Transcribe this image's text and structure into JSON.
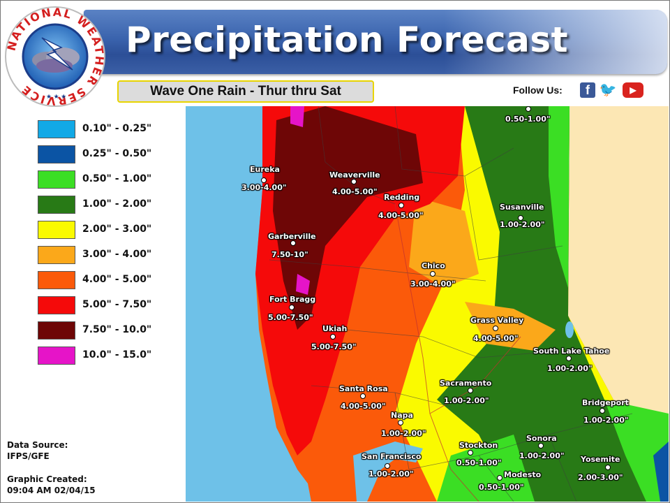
{
  "header": {
    "title": "Precipitation Forecast",
    "subtitle": "Wave One Rain - Thur thru Sat"
  },
  "logo": {
    "icon": "nws-logo-icon",
    "ring_text": "NATIONAL WEATHER SERVICE"
  },
  "social": {
    "follow_label": "Follow Us:",
    "facebook_icon": "facebook-icon",
    "twitter_icon": "twitter-icon",
    "youtube_icon": "youtube-icon",
    "facebook_glyph": "f",
    "twitter_glyph": "🐦",
    "youtube_glyph": "▶"
  },
  "legend": [
    {
      "label": "0.10\" - 0.25\"",
      "color": "#12a9e6"
    },
    {
      "label": "0.25\" - 0.50\"",
      "color": "#0b54a4"
    },
    {
      "label": "0.50\" - 1.00\"",
      "color": "#3bde24"
    },
    {
      "label": "1.00\" - 2.00\"",
      "color": "#287a16"
    },
    {
      "label": "2.00\" - 3.00\"",
      "color": "#fafa00"
    },
    {
      "label": "3.00\" - 4.00\"",
      "color": "#fba81a"
    },
    {
      "label": "4.00\" - 5.00\"",
      "color": "#fb5a0a"
    },
    {
      "label": "5.00\" - 7.50\"",
      "color": "#f50a0a"
    },
    {
      "label": "7.50\" - 10.0\"",
      "color": "#6e0606"
    },
    {
      "label": "10.0\" - 15.0\"",
      "color": "#e614c8"
    }
  ],
  "footer": {
    "source_label": "Data Source:",
    "source_value": "IFPS/GFE",
    "created_label": "Graphic Created:",
    "created_value": "09:04 AM 02/04/15"
  },
  "colors": {
    "ocean": "#6ec1e8",
    "nevada": "#fce7b4"
  },
  "cities": [
    {
      "name": "Eureka",
      "range": "3.00-4.00\""
    },
    {
      "name": "Weaverville",
      "range": "4.00-5.00\""
    },
    {
      "name": "Redding",
      "range": "4.00-5.00\""
    },
    {
      "name": "",
      "range": "0.50-1.00\""
    },
    {
      "name": "Susanville",
      "range": "1.00-2.00\""
    },
    {
      "name": "Garberville",
      "range": "7.50-10\""
    },
    {
      "name": "Chico",
      "range": "3.00-4.00\""
    },
    {
      "name": "Fort Bragg",
      "range": "5.00-7.50\""
    },
    {
      "name": "Grass Valley",
      "range": "4.00-5.00\""
    },
    {
      "name": "Ukiah",
      "range": "5.00-7.50\""
    },
    {
      "name": "South Lake Tahoe",
      "range": "1.00-2.00\""
    },
    {
      "name": "Sacramento",
      "range": "1.00-2.00\""
    },
    {
      "name": "Santa Rosa",
      "range": "4.00-5.00\""
    },
    {
      "name": "Bridgeport",
      "range": "1.00-2.00\""
    },
    {
      "name": "Napa",
      "range": "1.00-2.00\""
    },
    {
      "name": "Stockton",
      "range": "0.50-1.00\""
    },
    {
      "name": "Sonora",
      "range": "1.00-2.00\""
    },
    {
      "name": "San Francisco",
      "range": "1.00-2.00\""
    },
    {
      "name": "Yosemite",
      "range": "2.00-3.00\""
    },
    {
      "name": "Modesto",
      "range": "0.50-1.00\""
    }
  ]
}
